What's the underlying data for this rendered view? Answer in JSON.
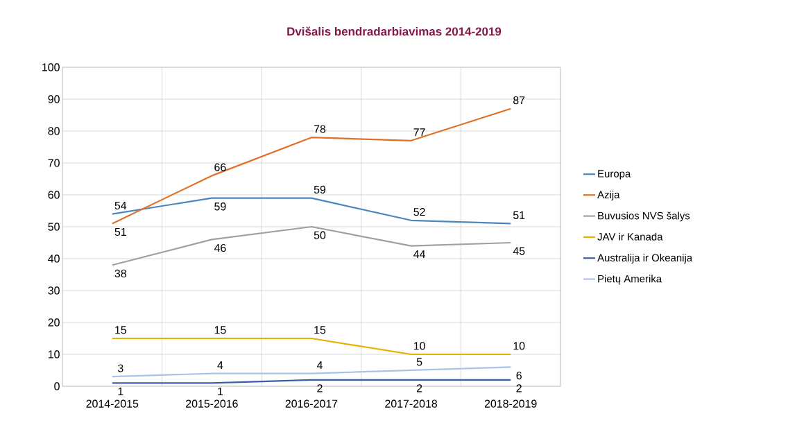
{
  "chart_data": {
    "type": "line",
    "title": "Dvišalis bendradarbiavimas 2014-2019",
    "categories": [
      "2014-2015",
      "2015-2016",
      "2016-2017",
      "2017-2018",
      "2018-2019"
    ],
    "series": [
      {
        "name": "Europa",
        "color": "#4a86c0",
        "values": [
          54,
          59,
          59,
          52,
          51
        ]
      },
      {
        "name": "Azija",
        "color": "#e07028",
        "values": [
          51,
          66,
          78,
          77,
          87
        ]
      },
      {
        "name": "Buvusios NVS šalys",
        "color": "#a0a0a0",
        "values": [
          38,
          46,
          50,
          44,
          45
        ]
      },
      {
        "name": "JAV ir Kanada",
        "color": "#e8b000",
        "values": [
          15,
          15,
          15,
          10,
          10
        ]
      },
      {
        "name": "Australija ir Okeanija",
        "color": "#3a5fa8",
        "values": [
          1,
          1,
          2,
          2,
          2
        ]
      },
      {
        "name": "Pietų Amerika",
        "color": "#a8c4e8",
        "values": [
          3,
          4,
          4,
          5,
          6
        ]
      }
    ],
    "ylim": [
      0,
      100
    ],
    "yticks": [
      0,
      10,
      20,
      30,
      40,
      50,
      60,
      70,
      80,
      90,
      100
    ],
    "grid": true,
    "legend": "right",
    "data_labels": true,
    "marker": "none",
    "line_style": "solid"
  }
}
